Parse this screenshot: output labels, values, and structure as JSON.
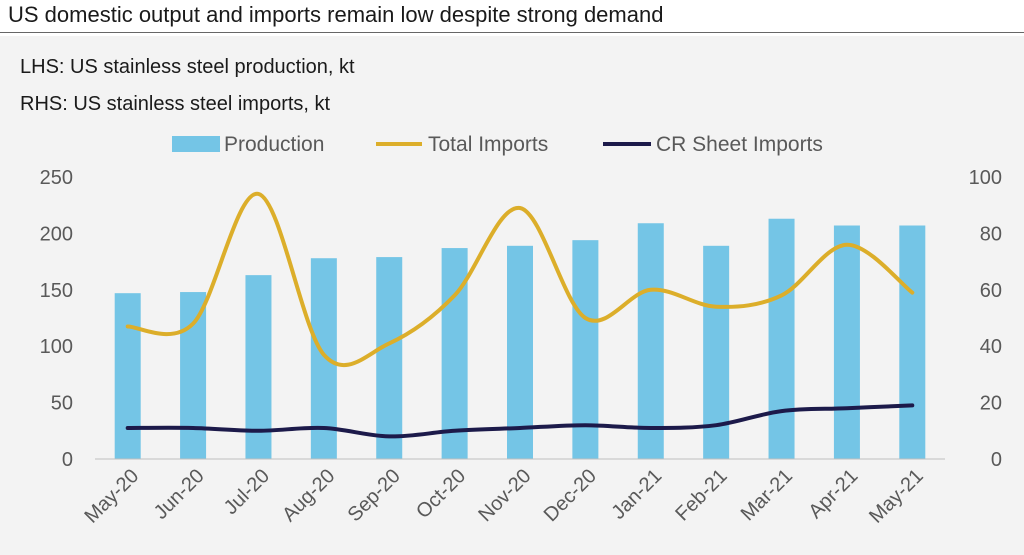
{
  "title": "US domestic output and imports remain low despite strong demand",
  "notes": {
    "lhs": "LHS: US stainless steel production, kt",
    "rhs": "RHS: US stainless steel imports, kt"
  },
  "colors": {
    "production": "#74c5e6",
    "total_imports": "#dcae2a",
    "cr_sheet_imports": "#1c1a4a",
    "axis_text": "#595959"
  },
  "chart_data": {
    "type": "bar",
    "title": "",
    "categories": [
      "May-20",
      "Jun-20",
      "Jul-20",
      "Aug-20",
      "Sep-20",
      "Oct-20",
      "Nov-20",
      "Dec-20",
      "Jan-21",
      "Feb-21",
      "Mar-21",
      "Apr-21",
      "May-21"
    ],
    "left_axis": {
      "min": 0,
      "max": 250,
      "ticks": [
        0,
        50,
        100,
        150,
        200,
        250
      ]
    },
    "right_axis": {
      "min": 0,
      "max": 100,
      "ticks": [
        0,
        20,
        40,
        60,
        80,
        100
      ]
    },
    "series": [
      {
        "name": "Production",
        "type": "bar",
        "axis": "left",
        "values": [
          147,
          148,
          163,
          178,
          179,
          187,
          189,
          194,
          209,
          189,
          213,
          207,
          207
        ]
      },
      {
        "name": "Total Imports",
        "type": "line",
        "axis": "right",
        "values": [
          47,
          48,
          94,
          37,
          41,
          58,
          89,
          50,
          60,
          54,
          58,
          76,
          59
        ]
      },
      {
        "name": "CR Sheet Imports",
        "type": "line",
        "axis": "right",
        "values": [
          11,
          11,
          10,
          11,
          8,
          10,
          11,
          12,
          11,
          12,
          17,
          18,
          19
        ]
      }
    ],
    "legend_position": "top-center",
    "grid": false
  }
}
